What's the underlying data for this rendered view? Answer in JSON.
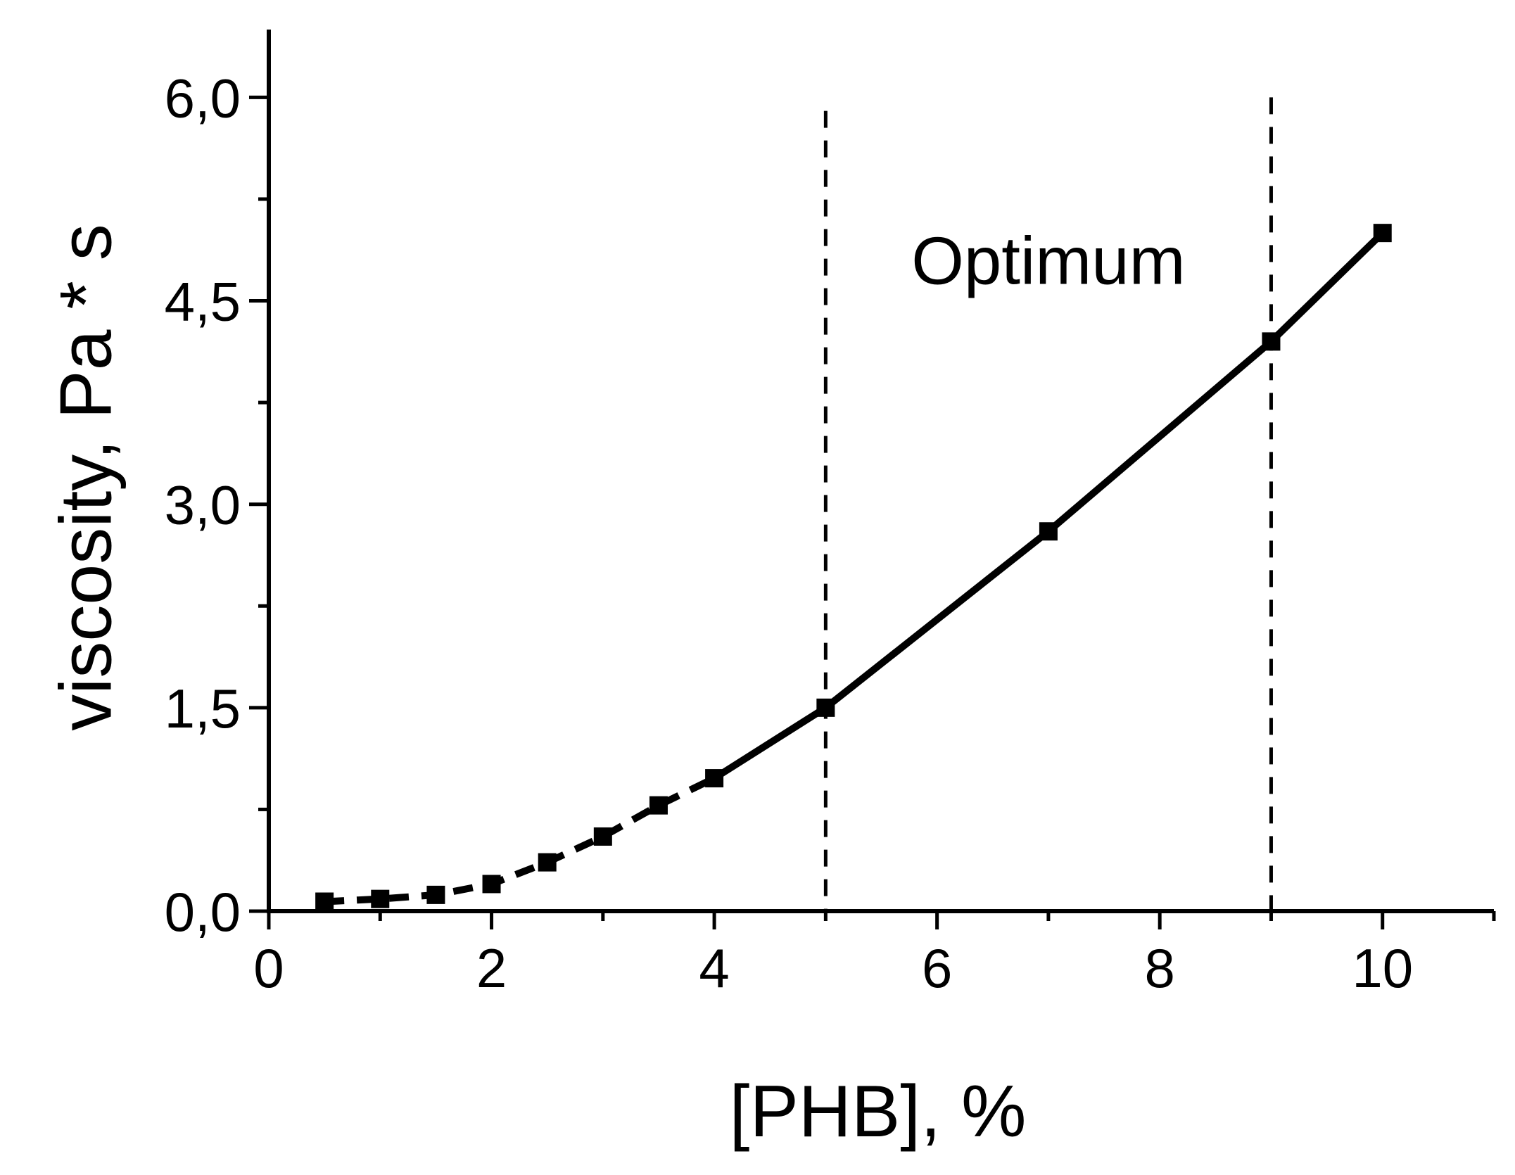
{
  "chart_data": {
    "type": "line",
    "title": "",
    "xlabel": "[PHB], %",
    "ylabel": "viscosity, Pa * s",
    "xlim": [
      0,
      11
    ],
    "ylim": [
      0,
      6.5
    ],
    "x_ticks": [
      {
        "value": 0,
        "label": "0"
      },
      {
        "value": 2,
        "label": "2"
      },
      {
        "value": 4,
        "label": "4"
      },
      {
        "value": 6,
        "label": "6"
      },
      {
        "value": 8,
        "label": "8"
      },
      {
        "value": 10,
        "label": "10"
      }
    ],
    "x_minor_ticks": [
      1,
      3,
      5,
      7,
      9,
      11
    ],
    "y_ticks": [
      {
        "value": 0,
        "label": "0,0"
      },
      {
        "value": 1.5,
        "label": "1,5"
      },
      {
        "value": 3,
        "label": "3,0"
      },
      {
        "value": 4.5,
        "label": "4,5"
      },
      {
        "value": 6,
        "label": "6,0"
      }
    ],
    "y_minor_ticks": [
      0.75,
      2.25,
      3.75,
      5.25
    ],
    "series": [
      {
        "x": [
          0.5,
          1.0,
          1.5,
          2.0,
          2.5,
          3.0,
          3.5,
          4.0,
          5.0,
          7.0,
          9.0,
          10.0
        ],
        "y": [
          0.07,
          0.09,
          0.12,
          0.2,
          0.36,
          0.55,
          0.78,
          0.98,
          1.5,
          2.8,
          4.2,
          5.0
        ],
        "marker": "square",
        "color": "#000000",
        "line_style_dashed_until_x": 4.0
      }
    ],
    "reference_lines": [
      {
        "orientation": "vertical",
        "x": 5,
        "style": "dashed",
        "y_top": 5.9
      },
      {
        "orientation": "vertical",
        "x": 9,
        "style": "dashed",
        "y_top": 6.0
      }
    ],
    "annotations": [
      {
        "text": "Optimum",
        "x": 7,
        "y": 4.8
      }
    ],
    "grid": false,
    "legend": "none"
  }
}
